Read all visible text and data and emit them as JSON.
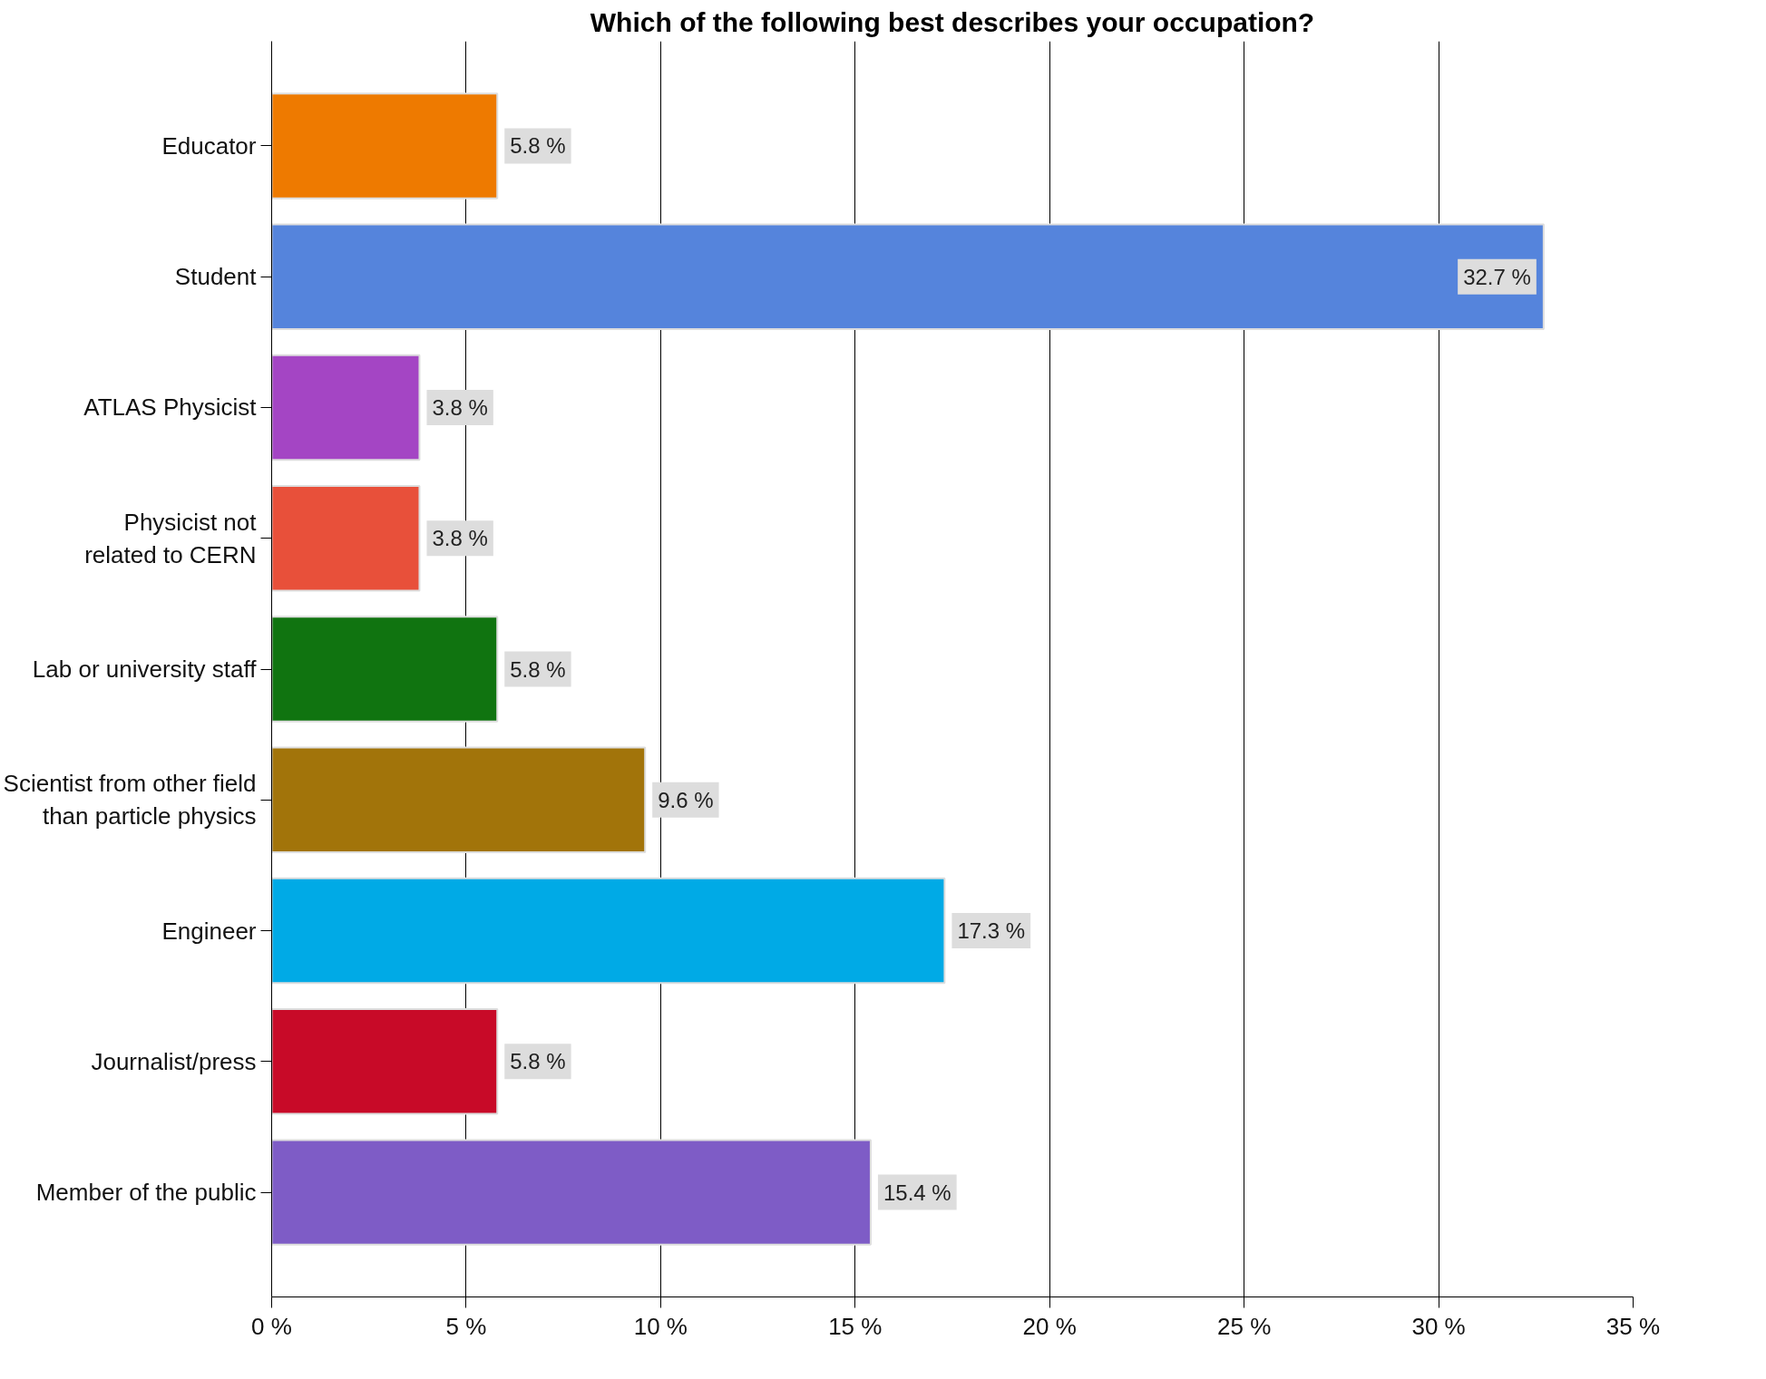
{
  "chart_data": {
    "type": "bar",
    "orientation": "horizontal",
    "title": "Which of the following best describes your occupation?",
    "categories": [
      "Educator",
      "Student",
      "ATLAS Physicist",
      "Physicist not\nrelated to CERN",
      "Lab or university staff",
      "Scientist from other field\nthan particle physics",
      "Engineer",
      "Journalist/press",
      "Member of the public"
    ],
    "values": [
      5.8,
      32.7,
      3.8,
      3.8,
      5.8,
      9.6,
      17.3,
      5.8,
      15.4
    ],
    "colors": [
      "#ee7a00",
      "#5584dc",
      "#a445c4",
      "#e8503a",
      "#107410",
      "#a2740a",
      "#00aae6",
      "#c80a28",
      "#7e5cc6"
    ],
    "value_labels": [
      "5.8 %",
      "32.7 %",
      "3.8 %",
      "3.8 %",
      "5.8 %",
      "9.6 %",
      "17.3 %",
      "5.8 %",
      "15.4 %"
    ],
    "xlim": [
      0,
      35
    ],
    "xticks": [
      {
        "value": 0,
        "label": "0 %"
      },
      {
        "value": 5,
        "label": "5 %"
      },
      {
        "value": 10,
        "label": "10 %"
      },
      {
        "value": 15,
        "label": "15 %"
      },
      {
        "value": 20,
        "label": "20 %"
      },
      {
        "value": 25,
        "label": "25 %"
      },
      {
        "value": 30,
        "label": "30 %"
      },
      {
        "value": 35,
        "label": "35 %"
      }
    ],
    "grid": "x"
  }
}
